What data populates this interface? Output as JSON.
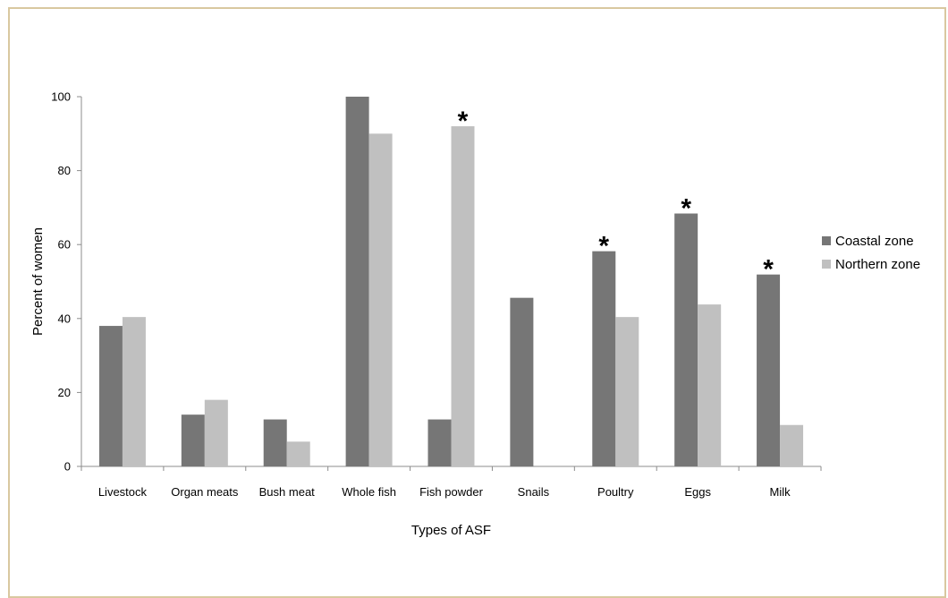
{
  "chart_data": {
    "type": "bar",
    "xlabel": "Types of ASF",
    "ylabel": "Percent of women",
    "ylim": [
      0,
      100
    ],
    "yticks": [
      0,
      20,
      40,
      60,
      80,
      100
    ],
    "grid": false,
    "legend_position": "right",
    "categories": [
      "Livestock",
      "Organ meats",
      "Bush meat",
      "Whole fish",
      "Fish powder",
      "Snails",
      "Poultry",
      "Eggs",
      "Milk"
    ],
    "series": [
      {
        "name": "Coastal zone",
        "color": "#767676",
        "values": [
          38,
          14,
          12.7,
          100,
          12.7,
          45.6,
          58.2,
          68.4,
          51.9
        ]
      },
      {
        "name": "Northern zone",
        "color": "#c0c0c0",
        "values": [
          40.4,
          18,
          6.7,
          90,
          92,
          0,
          40.4,
          43.8,
          11.2
        ]
      }
    ],
    "annotations": [
      {
        "category": "Fish powder",
        "series": "Northern zone",
        "text": "*"
      },
      {
        "category": "Poultry",
        "series": "Coastal zone",
        "text": "*"
      },
      {
        "category": "Eggs",
        "series": "Coastal zone",
        "text": "*"
      },
      {
        "category": "Milk",
        "series": "Coastal zone",
        "text": "*"
      }
    ]
  }
}
